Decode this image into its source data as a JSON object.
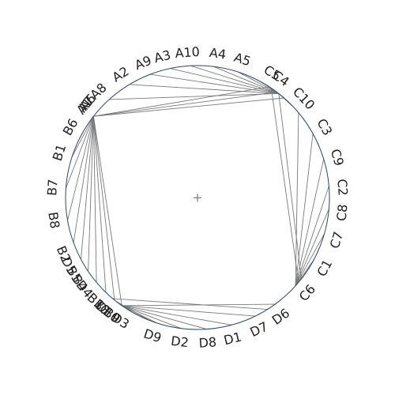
{
  "diagram": {
    "type": "chord",
    "circle_color": "#2c4a6b",
    "chord_color": "#7a7a7a",
    "center_marker": "+",
    "labels": [
      {
        "name": "A10",
        "angle": 94
      },
      {
        "name": "A4",
        "angle": 82
      },
      {
        "name": "A5",
        "angle": 72
      },
      {
        "name": "C5",
        "angle": 59
      },
      {
        "name": "C4",
        "angle": 55
      },
      {
        "name": "C10",
        "angle": 43
      },
      {
        "name": "C3",
        "angle": 29
      },
      {
        "name": "C9",
        "angle": 16
      },
      {
        "name": "C2",
        "angle": 4
      },
      {
        "name": "C8",
        "angle": -6
      },
      {
        "name": "C7",
        "angle": -17
      },
      {
        "name": "C1",
        "angle": -29
      },
      {
        "name": "C6",
        "angle": -41
      },
      {
        "name": "D6",
        "angle": -55
      },
      {
        "name": "D7",
        "angle": -65
      },
      {
        "name": "D1",
        "angle": -76
      },
      {
        "name": "D8",
        "angle": -86
      },
      {
        "name": "D2",
        "angle": -97
      },
      {
        "name": "D9",
        "angle": -108
      },
      {
        "name": "D3",
        "angle": -122
      },
      {
        "name": "B9",
        "angle": -126
      },
      {
        "name": "D10",
        "angle": -128
      },
      {
        "name": "B3",
        "angle": -131
      },
      {
        "name": "B10",
        "angle": -133
      },
      {
        "name": "D4",
        "angle": -141
      },
      {
        "name": "B4",
        "angle": -144
      },
      {
        "name": "B5",
        "angle": -148
      },
      {
        "name": "D5",
        "angle": -152
      },
      {
        "name": "B2",
        "angle": -157
      },
      {
        "name": "B8",
        "angle": -171
      },
      {
        "name": "B7",
        "angle": 176
      },
      {
        "name": "B1",
        "angle": 162
      },
      {
        "name": "B6",
        "angle": 151
      },
      {
        "name": "A1",
        "angle": 141
      },
      {
        "name": "A7",
        "angle": 140
      },
      {
        "name": "A6",
        "angle": 139
      },
      {
        "name": "A8",
        "angle": 133
      },
      {
        "name": "A2",
        "angle": 122
      },
      {
        "name": "A9",
        "angle": 112
      },
      {
        "name": "A3",
        "angle": 104
      }
    ],
    "chords": [
      {
        "from": 142,
        "to": 49
      },
      {
        "from": 142,
        "to": 53
      },
      {
        "from": 142,
        "to": 57
      },
      {
        "from": 142,
        "to": -125
      },
      {
        "from": 142,
        "to": -129
      },
      {
        "from": 142,
        "to": -134
      },
      {
        "from": 142,
        "to": -140
      },
      {
        "from": 142,
        "to": -146
      },
      {
        "from": 142,
        "to": -152
      },
      {
        "from": 142,
        "to": -160
      },
      {
        "from": 142,
        "to": -170
      },
      {
        "from": 142,
        "to": 176
      },
      {
        "from": 142,
        "to": 162
      },
      {
        "from": 52,
        "to": 132
      },
      {
        "from": 52,
        "to": 121
      },
      {
        "from": 52,
        "to": 111
      },
      {
        "from": 52,
        "to": 102
      },
      {
        "from": 52,
        "to": 93
      },
      {
        "from": 52,
        "to": 83
      },
      {
        "from": 52,
        "to": 72
      },
      {
        "from": 52,
        "to": 62
      },
      {
        "from": 52,
        "to": 43
      },
      {
        "from": 52,
        "to": -38
      },
      {
        "from": 56,
        "to": -40
      },
      {
        "from": -42,
        "to": 40
      },
      {
        "from": -42,
        "to": 29
      },
      {
        "from": -42,
        "to": 17
      },
      {
        "from": -42,
        "to": 5
      },
      {
        "from": -42,
        "to": -5
      },
      {
        "from": -42,
        "to": -16
      },
      {
        "from": -42,
        "to": -28
      },
      {
        "from": -125,
        "to": -54
      },
      {
        "from": -125,
        "to": -64
      },
      {
        "from": -125,
        "to": -75
      },
      {
        "from": -125,
        "to": -86
      },
      {
        "from": -125,
        "to": -97
      },
      {
        "from": -125,
        "to": -108
      },
      {
        "from": -125,
        "to": -118
      },
      {
        "from": -130,
        "to": -58
      },
      {
        "from": -128,
        "to": -112
      }
    ]
  }
}
